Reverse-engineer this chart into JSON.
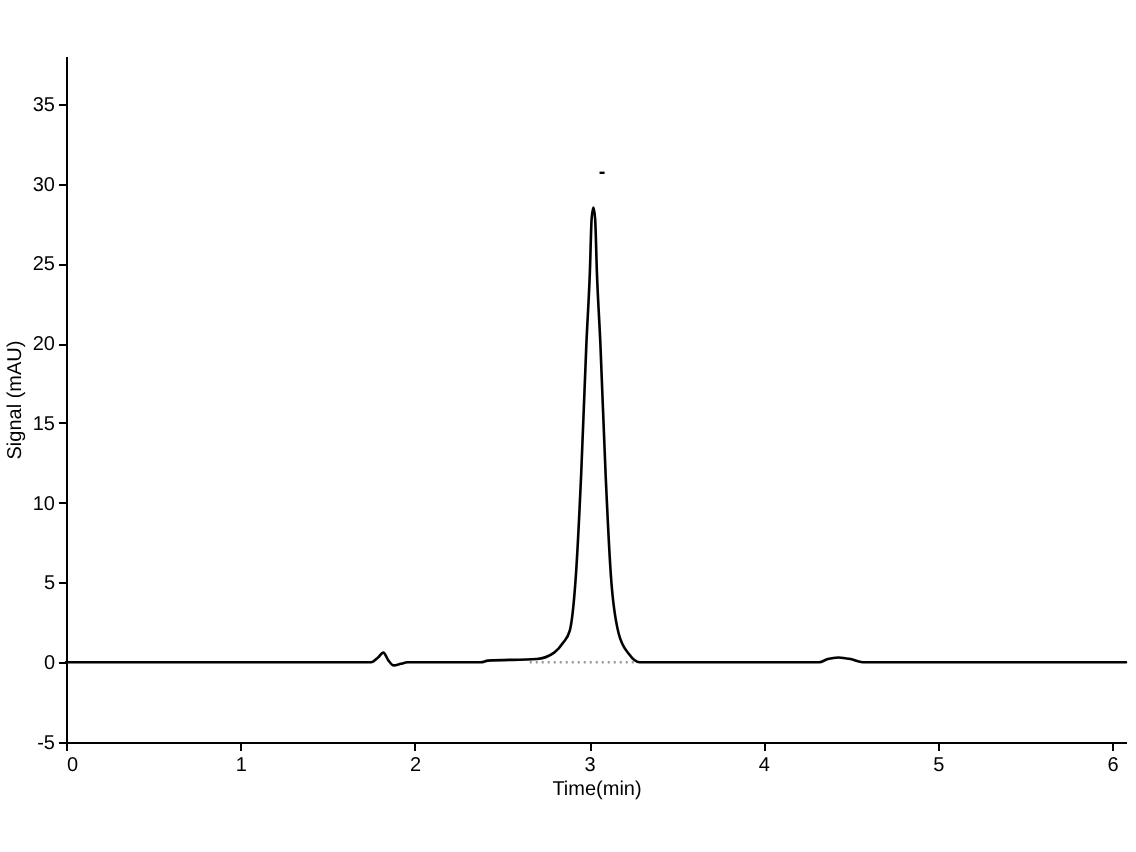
{
  "chart_data": {
    "type": "line",
    "xlabel": "Time(min)",
    "ylabel": "Signal (mAU)",
    "xlim": [
      0,
      6.08
    ],
    "ylim": [
      -5,
      38
    ],
    "xticks": [
      0,
      1,
      2,
      3,
      4,
      5,
      6
    ],
    "yticks": [
      -5,
      0,
      5,
      10,
      15,
      20,
      25,
      30,
      35
    ],
    "grid": false,
    "series": [
      {
        "color": "#000000",
        "line_style": "solid",
        "x": [
          0,
          1.75,
          1.79,
          1.82,
          1.85,
          1.88,
          1.92,
          1.96,
          2.38,
          2.42,
          2.7,
          2.8,
          2.85,
          2.89,
          2.925,
          2.955,
          2.985,
          3.005,
          3.015,
          3.025,
          3.035,
          3.045,
          3.065,
          3.095,
          3.125,
          3.17,
          3.23,
          3.29,
          4.32,
          4.37,
          4.43,
          4.5,
          4.57,
          6.08
        ],
        "values": [
          0,
          0,
          0.3,
          0.6,
          0.1,
          -0.2,
          -0.1,
          0,
          0,
          0.1,
          0.2,
          0.6,
          1.2,
          2.0,
          5.5,
          11.8,
          20,
          24.5,
          27.8,
          28.5,
          27.8,
          24.5,
          20,
          11.8,
          5.5,
          1.8,
          0.5,
          0,
          0,
          0.2,
          0.3,
          0.2,
          0,
          0
        ]
      },
      {
        "type": "line",
        "line_style": "dotted",
        "color": "#999999",
        "x": [
          2.66,
          3.26
        ],
        "values": [
          0,
          0
        ]
      }
    ],
    "annotations": [
      "-"
    ]
  }
}
